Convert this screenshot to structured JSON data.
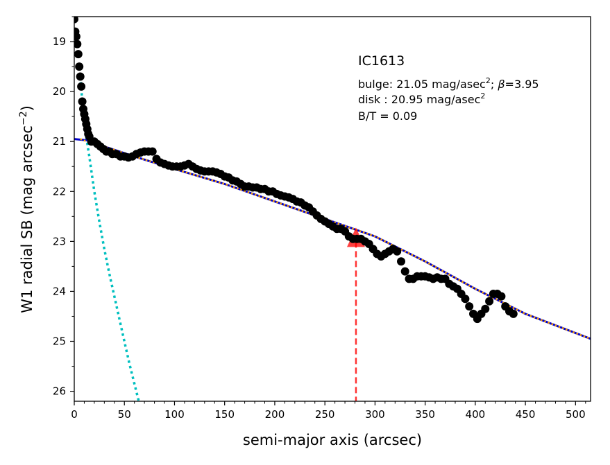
{
  "chart_data": {
    "type": "scatter",
    "title": "",
    "xlabel": "semi-major axis (arcsec)",
    "ylabel": "W1 radial SB (mag arcsec",
    "ylabel_exp": "−2",
    "ylabel_close": ")",
    "xlim": [
      0,
      515
    ],
    "ylim": [
      26.2,
      18.5
    ],
    "y_inverted": true,
    "grid": false,
    "legend": "none",
    "x_ticks": [
      "0",
      "50",
      "100",
      "150",
      "200",
      "250",
      "300",
      "350",
      "400",
      "450",
      "500"
    ],
    "y_ticks": [
      "19",
      "20",
      "21",
      "22",
      "23",
      "24",
      "25",
      "26"
    ],
    "annotation": {
      "galaxy": "IC1613",
      "bulge_prefix": "bulge: 21.05 mag/asec",
      "bulge_exp": "2",
      "bulge_beta_sep": "; ",
      "bulge_beta_symbol": "β",
      "bulge_beta_value": "=3.95",
      "disk_prefix": "disk  : 20.95 mag/asec",
      "disk_exp": "2",
      "bt": "B/T = 0.09"
    },
    "marker": {
      "x": 281,
      "y": 23.0
    },
    "colors": {
      "points": "#000000",
      "bulge": "#00bfbf",
      "disk_fit": "#0000cc",
      "total_fit": "#ffa500",
      "marker": "#ff0000"
    },
    "series": [
      {
        "role": "data",
        "points": [
          [
            0,
            18.55
          ],
          [
            1,
            18.8
          ],
          [
            2,
            18.9
          ],
          [
            3,
            19.05
          ],
          [
            4,
            19.25
          ],
          [
            5,
            19.5
          ],
          [
            6,
            19.7
          ],
          [
            7,
            19.9
          ],
          [
            8,
            20.2
          ],
          [
            9,
            20.35
          ],
          [
            10,
            20.45
          ],
          [
            11,
            20.55
          ],
          [
            12,
            20.65
          ],
          [
            13,
            20.75
          ],
          [
            14,
            20.85
          ],
          [
            15,
            20.9
          ],
          [
            17,
            21.0
          ],
          [
            20,
            21.0
          ],
          [
            23,
            21.05
          ],
          [
            26,
            21.1
          ],
          [
            29,
            21.15
          ],
          [
            32,
            21.2
          ],
          [
            35,
            21.2
          ],
          [
            38,
            21.25
          ],
          [
            42,
            21.25
          ],
          [
            46,
            21.3
          ],
          [
            50,
            21.3
          ],
          [
            54,
            21.32
          ],
          [
            58,
            21.3
          ],
          [
            62,
            21.25
          ],
          [
            66,
            21.22
          ],
          [
            70,
            21.2
          ],
          [
            74,
            21.2
          ],
          [
            78,
            21.2
          ],
          [
            82,
            21.35
          ],
          [
            86,
            21.42
          ],
          [
            90,
            21.45
          ],
          [
            94,
            21.48
          ],
          [
            98,
            21.5
          ],
          [
            102,
            21.5
          ],
          [
            106,
            21.5
          ],
          [
            110,
            21.48
          ],
          [
            114,
            21.45
          ],
          [
            118,
            21.5
          ],
          [
            122,
            21.55
          ],
          [
            126,
            21.58
          ],
          [
            130,
            21.6
          ],
          [
            134,
            21.6
          ],
          [
            138,
            21.6
          ],
          [
            142,
            21.62
          ],
          [
            146,
            21.65
          ],
          [
            150,
            21.7
          ],
          [
            154,
            21.72
          ],
          [
            158,
            21.78
          ],
          [
            162,
            21.8
          ],
          [
            166,
            21.85
          ],
          [
            170,
            21.9
          ],
          [
            174,
            21.9
          ],
          [
            178,
            21.92
          ],
          [
            182,
            21.92
          ],
          [
            186,
            21.95
          ],
          [
            190,
            21.95
          ],
          [
            194,
            22.0
          ],
          [
            198,
            22.0
          ],
          [
            202,
            22.05
          ],
          [
            206,
            22.08
          ],
          [
            210,
            22.1
          ],
          [
            214,
            22.12
          ],
          [
            218,
            22.15
          ],
          [
            222,
            22.2
          ],
          [
            226,
            22.22
          ],
          [
            230,
            22.28
          ],
          [
            234,
            22.32
          ],
          [
            238,
            22.4
          ],
          [
            242,
            22.48
          ],
          [
            246,
            22.55
          ],
          [
            250,
            22.6
          ],
          [
            254,
            22.65
          ],
          [
            258,
            22.7
          ],
          [
            262,
            22.75
          ],
          [
            266,
            22.75
          ],
          [
            270,
            22.8
          ],
          [
            274,
            22.9
          ],
          [
            278,
            22.95
          ],
          [
            282,
            22.95
          ],
          [
            286,
            22.95
          ],
          [
            290,
            23.0
          ],
          [
            294,
            23.05
          ],
          [
            298,
            23.15
          ],
          [
            302,
            23.25
          ],
          [
            306,
            23.3
          ],
          [
            310,
            23.25
          ],
          [
            314,
            23.2
          ],
          [
            318,
            23.15
          ],
          [
            322,
            23.2
          ],
          [
            326,
            23.4
          ],
          [
            330,
            23.6
          ],
          [
            334,
            23.75
          ],
          [
            338,
            23.75
          ],
          [
            342,
            23.7
          ],
          [
            346,
            23.7
          ],
          [
            350,
            23.7
          ],
          [
            354,
            23.72
          ],
          [
            358,
            23.75
          ],
          [
            362,
            23.72
          ],
          [
            366,
            23.75
          ],
          [
            370,
            23.75
          ],
          [
            374,
            23.85
          ],
          [
            378,
            23.9
          ],
          [
            382,
            23.95
          ],
          [
            386,
            24.05
          ],
          [
            390,
            24.15
          ],
          [
            394,
            24.3
          ],
          [
            398,
            24.45
          ],
          [
            402,
            24.55
          ],
          [
            406,
            24.45
          ],
          [
            410,
            24.35
          ],
          [
            414,
            24.2
          ],
          [
            418,
            24.05
          ],
          [
            422,
            24.05
          ],
          [
            426,
            24.1
          ],
          [
            430,
            24.3
          ],
          [
            434,
            24.4
          ],
          [
            438,
            24.45
          ]
        ]
      },
      {
        "role": "bulge_fit",
        "points": [
          [
            6,
            19.7
          ],
          [
            8,
            20.2
          ],
          [
            10,
            20.55
          ],
          [
            12,
            20.9
          ],
          [
            15,
            21.3
          ],
          [
            20,
            22.0
          ],
          [
            25,
            22.6
          ],
          [
            30,
            23.15
          ],
          [
            35,
            23.65
          ],
          [
            40,
            24.1
          ],
          [
            45,
            24.55
          ],
          [
            50,
            25.0
          ],
          [
            55,
            25.45
          ],
          [
            60,
            25.85
          ],
          [
            65,
            26.25
          ]
        ]
      },
      {
        "role": "disk_fit",
        "points": [
          [
            0,
            20.95
          ],
          [
            15,
            20.98
          ],
          [
            30,
            21.1
          ],
          [
            60,
            21.3
          ],
          [
            100,
            21.55
          ],
          [
            150,
            21.85
          ],
          [
            200,
            22.2
          ],
          [
            250,
            22.55
          ],
          [
            300,
            22.9
          ],
          [
            350,
            23.4
          ],
          [
            400,
            23.95
          ],
          [
            450,
            24.45
          ],
          [
            515,
            24.95
          ]
        ]
      },
      {
        "role": "total_fit",
        "points": [
          [
            6,
            20.95
          ],
          [
            10,
            20.98
          ],
          [
            15,
            21.0
          ],
          [
            30,
            21.1
          ],
          [
            60,
            21.3
          ],
          [
            100,
            21.55
          ],
          [
            150,
            21.85
          ],
          [
            200,
            22.2
          ],
          [
            250,
            22.55
          ],
          [
            300,
            22.9
          ],
          [
            350,
            23.4
          ],
          [
            400,
            23.95
          ],
          [
            450,
            24.45
          ],
          [
            515,
            24.95
          ]
        ]
      }
    ]
  }
}
